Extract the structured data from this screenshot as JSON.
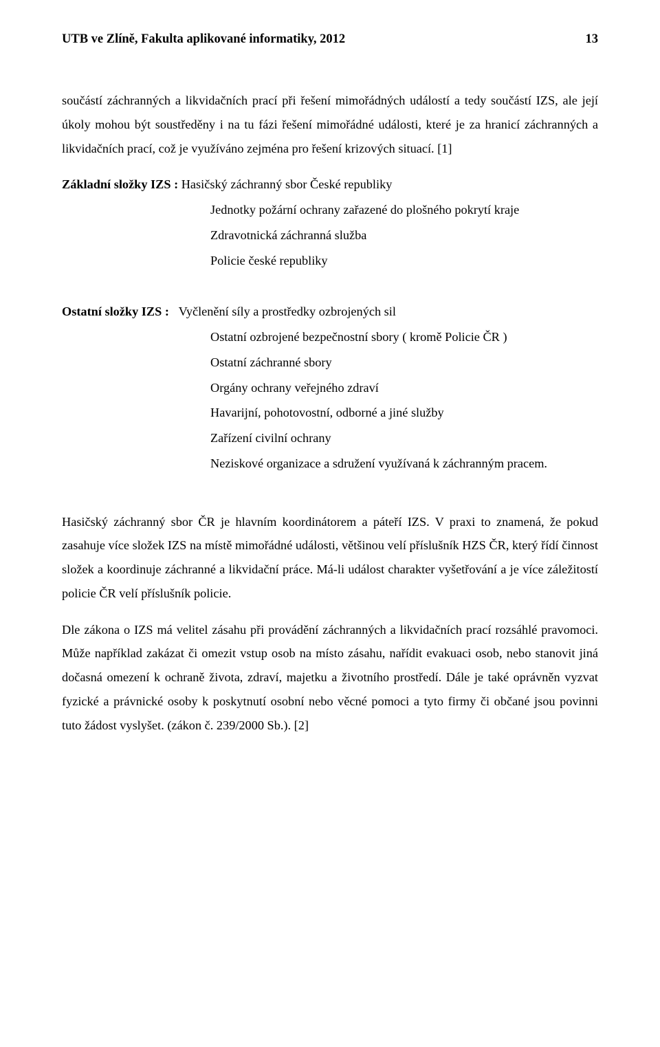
{
  "header": {
    "title": "UTB ve Zlíně, Fakulta aplikované informatiky, 2012",
    "page": "13"
  },
  "para1": "součástí záchranných a likvidačních prací při řešení mimořádných událostí a tedy součástí IZS, ale její úkoly mohou být soustředěny i na tu fázi řešení mimořádné události, které je za hranicí záchranných a likvidačních prací, což je využíváno zejména pro řešení krizových situací. [1]",
  "basic": {
    "label": "Základní složky IZS : ",
    "first": "Hasičský záchranný sbor České republiky",
    "items": [
      "Jednotky požární ochrany zařazené do plošného pokrytí kraje",
      "Zdravotnická záchranná služba",
      "Policie české republiky"
    ]
  },
  "other": {
    "label": "Ostatní složky IZS :   ",
    "first": "Vyčlenění síly a prostředky ozbrojených sil",
    "items": [
      "Ostatní ozbrojené bezpečnostní sbory ( kromě Policie ČR )",
      "Ostatní záchranné sbory",
      "Orgány ochrany veřejného zdraví",
      "Havarijní, pohotovostní, odborné a jiné služby",
      "Zařízení civilní ochrany",
      "Neziskové organizace a sdružení využívaná k záchranným pracem."
    ]
  },
  "para2": "Hasičský záchranný sbor ČR je hlavním koordinátorem a páteří IZS. V praxi to znamená, že pokud zasahuje více složek IZS na místě mimořádné události, většinou velí příslušník HZS ČR, který řídí činnost složek a koordinuje záchranné a likvidační práce. Má-li událost charakter vyšetřování a je více záležitostí policie ČR velí příslušník policie.",
  "para3": "Dle zákona o IZS má velitel zásahu při provádění záchranných a likvidačních prací rozsáhlé pravomoci. Může například zakázat či omezit vstup osob na místo zásahu, nařídit evakuaci osob, nebo stanovit jiná dočasná omezení k ochraně života, zdraví, majetku a životního prostředí. Dále je také oprávněn vyzvat fyzické a právnické osoby k poskytnutí osobní nebo věcné pomoci a tyto firmy či občané jsou povinni tuto žádost vyslyšet. (zákon č. 239/2000 Sb.). [2]"
}
